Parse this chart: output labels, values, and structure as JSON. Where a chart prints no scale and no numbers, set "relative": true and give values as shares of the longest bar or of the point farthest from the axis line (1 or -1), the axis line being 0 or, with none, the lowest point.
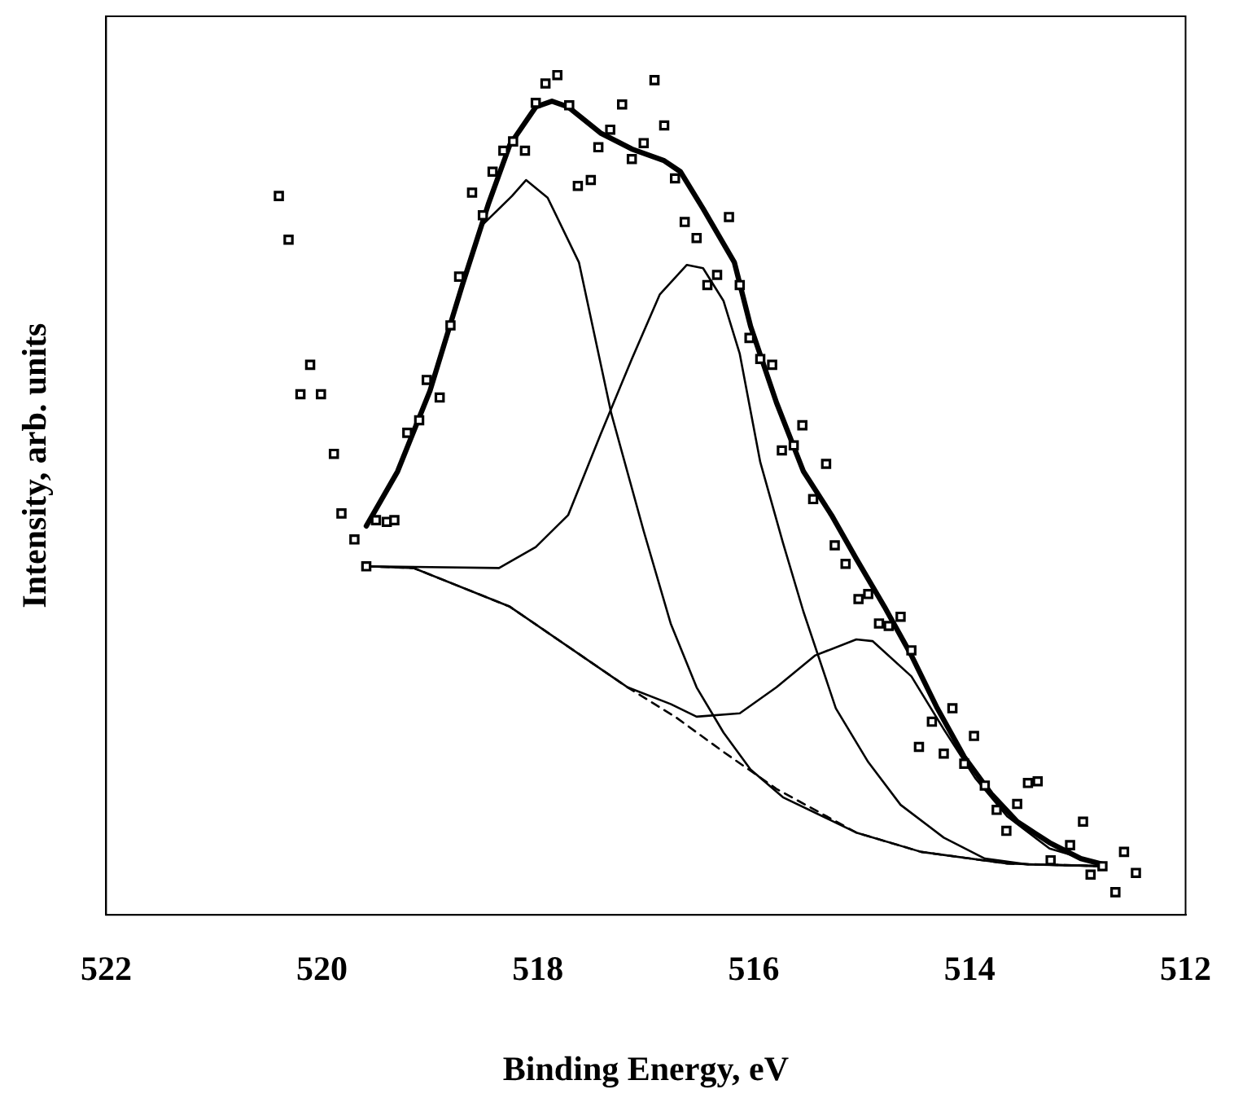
{
  "chart_data": {
    "type": "line",
    "xlabel": "Binding Energy, eV",
    "ylabel": "Intensity, arb. units",
    "relative": true,
    "xlim": [
      522,
      512
    ],
    "xticks": [
      522,
      520,
      518,
      516,
      514,
      512
    ],
    "grid": false,
    "legend": false,
    "series": [
      {
        "type": "scatter",
        "marker": "square",
        "color": "#000000",
        "x": [
          520.4,
          520.31,
          520.11,
          520.2,
          520.01,
          519.89,
          519.82,
          519.7,
          519.59,
          519.5,
          519.4,
          519.33,
          519.21,
          519.1,
          519.03,
          518.91,
          518.81,
          518.73,
          518.61,
          518.51,
          518.42,
          518.32,
          518.23,
          518.12,
          518.02,
          517.93,
          517.82,
          517.71,
          517.63,
          517.51,
          517.44,
          517.33,
          517.22,
          517.13,
          517.02,
          516.92,
          516.83,
          516.73,
          516.64,
          516.53,
          516.43,
          516.34,
          516.23,
          516.13,
          516.04,
          515.94,
          515.83,
          515.74,
          515.63,
          515.55,
          515.33,
          515.45,
          515.25,
          515.15,
          515.03,
          514.94,
          514.84,
          514.75,
          514.64,
          514.54,
          514.35,
          514.47,
          514.16,
          514.24,
          514.05,
          513.96,
          513.86,
          513.75,
          513.66,
          513.56,
          513.46,
          513.37,
          513.25,
          513.07,
          512.95,
          512.88,
          512.77,
          512.65,
          512.57,
          512.46
        ],
        "values": [
          0.856,
          0.804,
          0.655,
          0.62,
          0.62,
          0.549,
          0.478,
          0.447,
          0.415,
          0.47,
          0.468,
          0.47,
          0.574,
          0.589,
          0.637,
          0.616,
          0.702,
          0.76,
          0.86,
          0.833,
          0.885,
          0.91,
          0.921,
          0.91,
          0.967,
          0.99,
          1,
          0.964,
          0.868,
          0.875,
          0.914,
          0.935,
          0.965,
          0.9,
          0.919,
          0.994,
          0.94,
          0.877,
          0.825,
          0.806,
          0.75,
          0.762,
          0.831,
          0.75,
          0.687,
          0.662,
          0.655,
          0.553,
          0.559,
          0.583,
          0.537,
          0.495,
          0.44,
          0.418,
          0.376,
          0.382,
          0.347,
          0.344,
          0.355,
          0.315,
          0.23,
          0.2,
          0.246,
          0.192,
          0.18,
          0.213,
          0.154,
          0.125,
          0.1,
          0.132,
          0.157,
          0.159,
          0.065,
          0.083,
          0.111,
          0.048,
          0.058,
          0.027,
          0.075,
          0.05
        ]
      },
      {
        "type": "line",
        "color": "#000000",
        "line_style": "solid",
        "x": [
          519.59,
          519.3,
          519.0,
          518.7,
          518.46,
          518.26,
          518.02,
          517.87,
          517.72,
          517.42,
          517.13,
          516.83,
          516.68,
          516.47,
          516.18,
          516.03,
          515.79,
          515.54,
          515.28,
          515.05,
          514.79,
          514.54,
          514.3,
          514.05,
          513.8,
          513.56,
          513.26,
          512.97,
          512.76
        ],
        "values": [
          0.463,
          0.528,
          0.624,
          0.75,
          0.846,
          0.917,
          0.962,
          0.969,
          0.962,
          0.931,
          0.912,
          0.898,
          0.885,
          0.841,
          0.777,
          0.701,
          0.61,
          0.528,
          0.476,
          0.424,
          0.367,
          0.309,
          0.246,
          0.188,
          0.144,
          0.111,
          0.086,
          0.067,
          0.06
        ]
      },
      {
        "type": "line",
        "color": "#000000",
        "line_style": "solid",
        "x": [
          519.59,
          519.3,
          519.0,
          518.7,
          518.51,
          518.24,
          518.11,
          517.91,
          517.62,
          517.32,
          517.02,
          516.77,
          516.53,
          516.28,
          516.03,
          515.73,
          515.05,
          514.45,
          513.65,
          512.76
        ],
        "values": [
          0.463,
          0.528,
          0.624,
          0.75,
          0.822,
          0.856,
          0.875,
          0.854,
          0.777,
          0.597,
          0.457,
          0.347,
          0.271,
          0.217,
          0.173,
          0.14,
          0.098,
          0.075,
          0.061,
          0.058
        ]
      },
      {
        "type": "line",
        "color": "#000000",
        "line_style": "solid",
        "x": [
          519.59,
          518.36,
          518.02,
          517.72,
          517.42,
          517.13,
          516.87,
          516.62,
          516.47,
          516.28,
          516.13,
          515.94,
          515.73,
          515.54,
          515.24,
          514.94,
          514.64,
          514.24,
          513.86,
          513.46,
          512.76
        ],
        "values": [
          0.415,
          0.413,
          0.438,
          0.476,
          0.572,
          0.662,
          0.739,
          0.774,
          0.77,
          0.731,
          0.668,
          0.539,
          0.443,
          0.361,
          0.246,
          0.182,
          0.131,
          0.092,
          0.067,
          0.06,
          0.058
        ]
      },
      {
        "type": "line",
        "color": "#000000",
        "line_style": "solid",
        "x": [
          519.59,
          519.15,
          518.26,
          517.17,
          516.77,
          516.53,
          516.13,
          515.79,
          515.43,
          515.05,
          514.9,
          514.54,
          514.24,
          513.95,
          513.65,
          513.26,
          512.76
        ],
        "values": [
          0.415,
          0.413,
          0.367,
          0.271,
          0.251,
          0.236,
          0.24,
          0.271,
          0.309,
          0.328,
          0.326,
          0.284,
          0.221,
          0.163,
          0.117,
          0.079,
          0.06
        ]
      },
      {
        "type": "line",
        "color": "#000000",
        "line_style": "dashed",
        "x": [
          519.59,
          519.15,
          518.26,
          517.17,
          516.73,
          516.28,
          515.79,
          515.05,
          514.45,
          513.65,
          512.76
        ],
        "values": [
          0.415,
          0.413,
          0.367,
          0.271,
          0.236,
          0.194,
          0.15,
          0.098,
          0.075,
          0.061,
          0.058
        ]
      }
    ]
  }
}
